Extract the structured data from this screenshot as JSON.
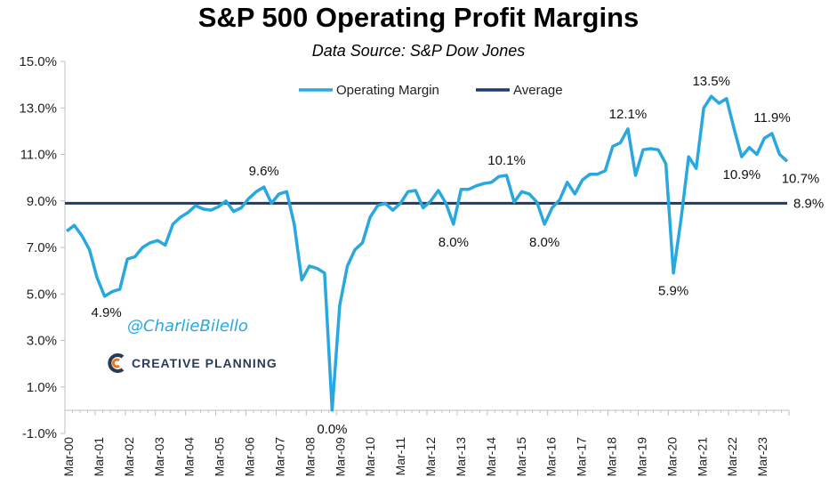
{
  "chart_data": {
    "type": "line",
    "title": "S&P 500 Operating Profit Margins",
    "subtitle": "Data Source: S&P Dow Jones",
    "ylim": [
      -1.0,
      15.0
    ],
    "yticks": [
      "15.0%",
      "13.0%",
      "11.0%",
      "9.0%",
      "7.0%",
      "5.0%",
      "3.0%",
      "1.0%",
      "-1.0%"
    ],
    "ytick_values": [
      15,
      13,
      11,
      9,
      7,
      5,
      3,
      1,
      -1
    ],
    "xticks": [
      "Mar-00",
      "Mar-01",
      "Mar-02",
      "Mar-03",
      "Mar-04",
      "Mar-05",
      "Mar-06",
      "Mar-07",
      "Mar-08",
      "Mar-09",
      "Mar-10",
      "Mar-11",
      "Mar-12",
      "Mar-13",
      "Mar-14",
      "Mar-15",
      "Mar-16",
      "Mar-17",
      "Mar-18",
      "Mar-19",
      "Mar-20",
      "Mar-21",
      "Mar-22",
      "Mar-23"
    ],
    "grid": false,
    "legend_position": "top-center",
    "series": [
      {
        "name": "Operating Margin",
        "color": "#29a8e0",
        "values": [
          7.7,
          7.95,
          7.5,
          6.9,
          5.7,
          4.9,
          5.1,
          5.2,
          6.5,
          6.6,
          7.0,
          7.2,
          7.3,
          7.1,
          8.0,
          8.3,
          8.5,
          8.8,
          8.65,
          8.6,
          8.75,
          9.0,
          8.55,
          8.7,
          9.1,
          9.4,
          9.6,
          8.9,
          9.3,
          9.4,
          8.0,
          5.6,
          6.2,
          6.1,
          5.9,
          0.0,
          4.5,
          6.2,
          6.9,
          7.2,
          8.3,
          8.8,
          8.9,
          8.6,
          8.9,
          9.4,
          9.45,
          8.7,
          9.0,
          9.45,
          8.9,
          8.0,
          9.5,
          9.5,
          9.65,
          9.75,
          9.8,
          10.05,
          10.1,
          8.95,
          9.4,
          9.3,
          8.95,
          8.0,
          8.7,
          9.05,
          9.8,
          9.3,
          9.9,
          10.15,
          10.15,
          10.3,
          11.35,
          11.5,
          12.1,
          10.1,
          11.2,
          11.25,
          11.2,
          10.6,
          5.9,
          8.2,
          10.9,
          10.4,
          13.0,
          13.5,
          13.2,
          13.4,
          12.1,
          10.9,
          11.3,
          11.0,
          11.7,
          11.9,
          11.0,
          10.7
        ]
      },
      {
        "name": "Average",
        "color": "#1f3a6e",
        "value": 8.9
      }
    ],
    "annotations": [
      "4.9%",
      "9.6%",
      "0.0%",
      "8.0%",
      "10.1%",
      "8.0%",
      "12.1%",
      "5.9%",
      "13.5%",
      "10.9%",
      "11.9%",
      "10.7%",
      "8.9%"
    ],
    "annotation_indices": [
      5,
      26,
      35,
      51,
      58,
      63,
      74,
      80,
      85,
      89,
      93,
      95
    ]
  },
  "watermark": {
    "handle": "@CharlieBilello",
    "brand": "CREATIVE PLANNING",
    "brand_icon": "c-logo-icon"
  }
}
